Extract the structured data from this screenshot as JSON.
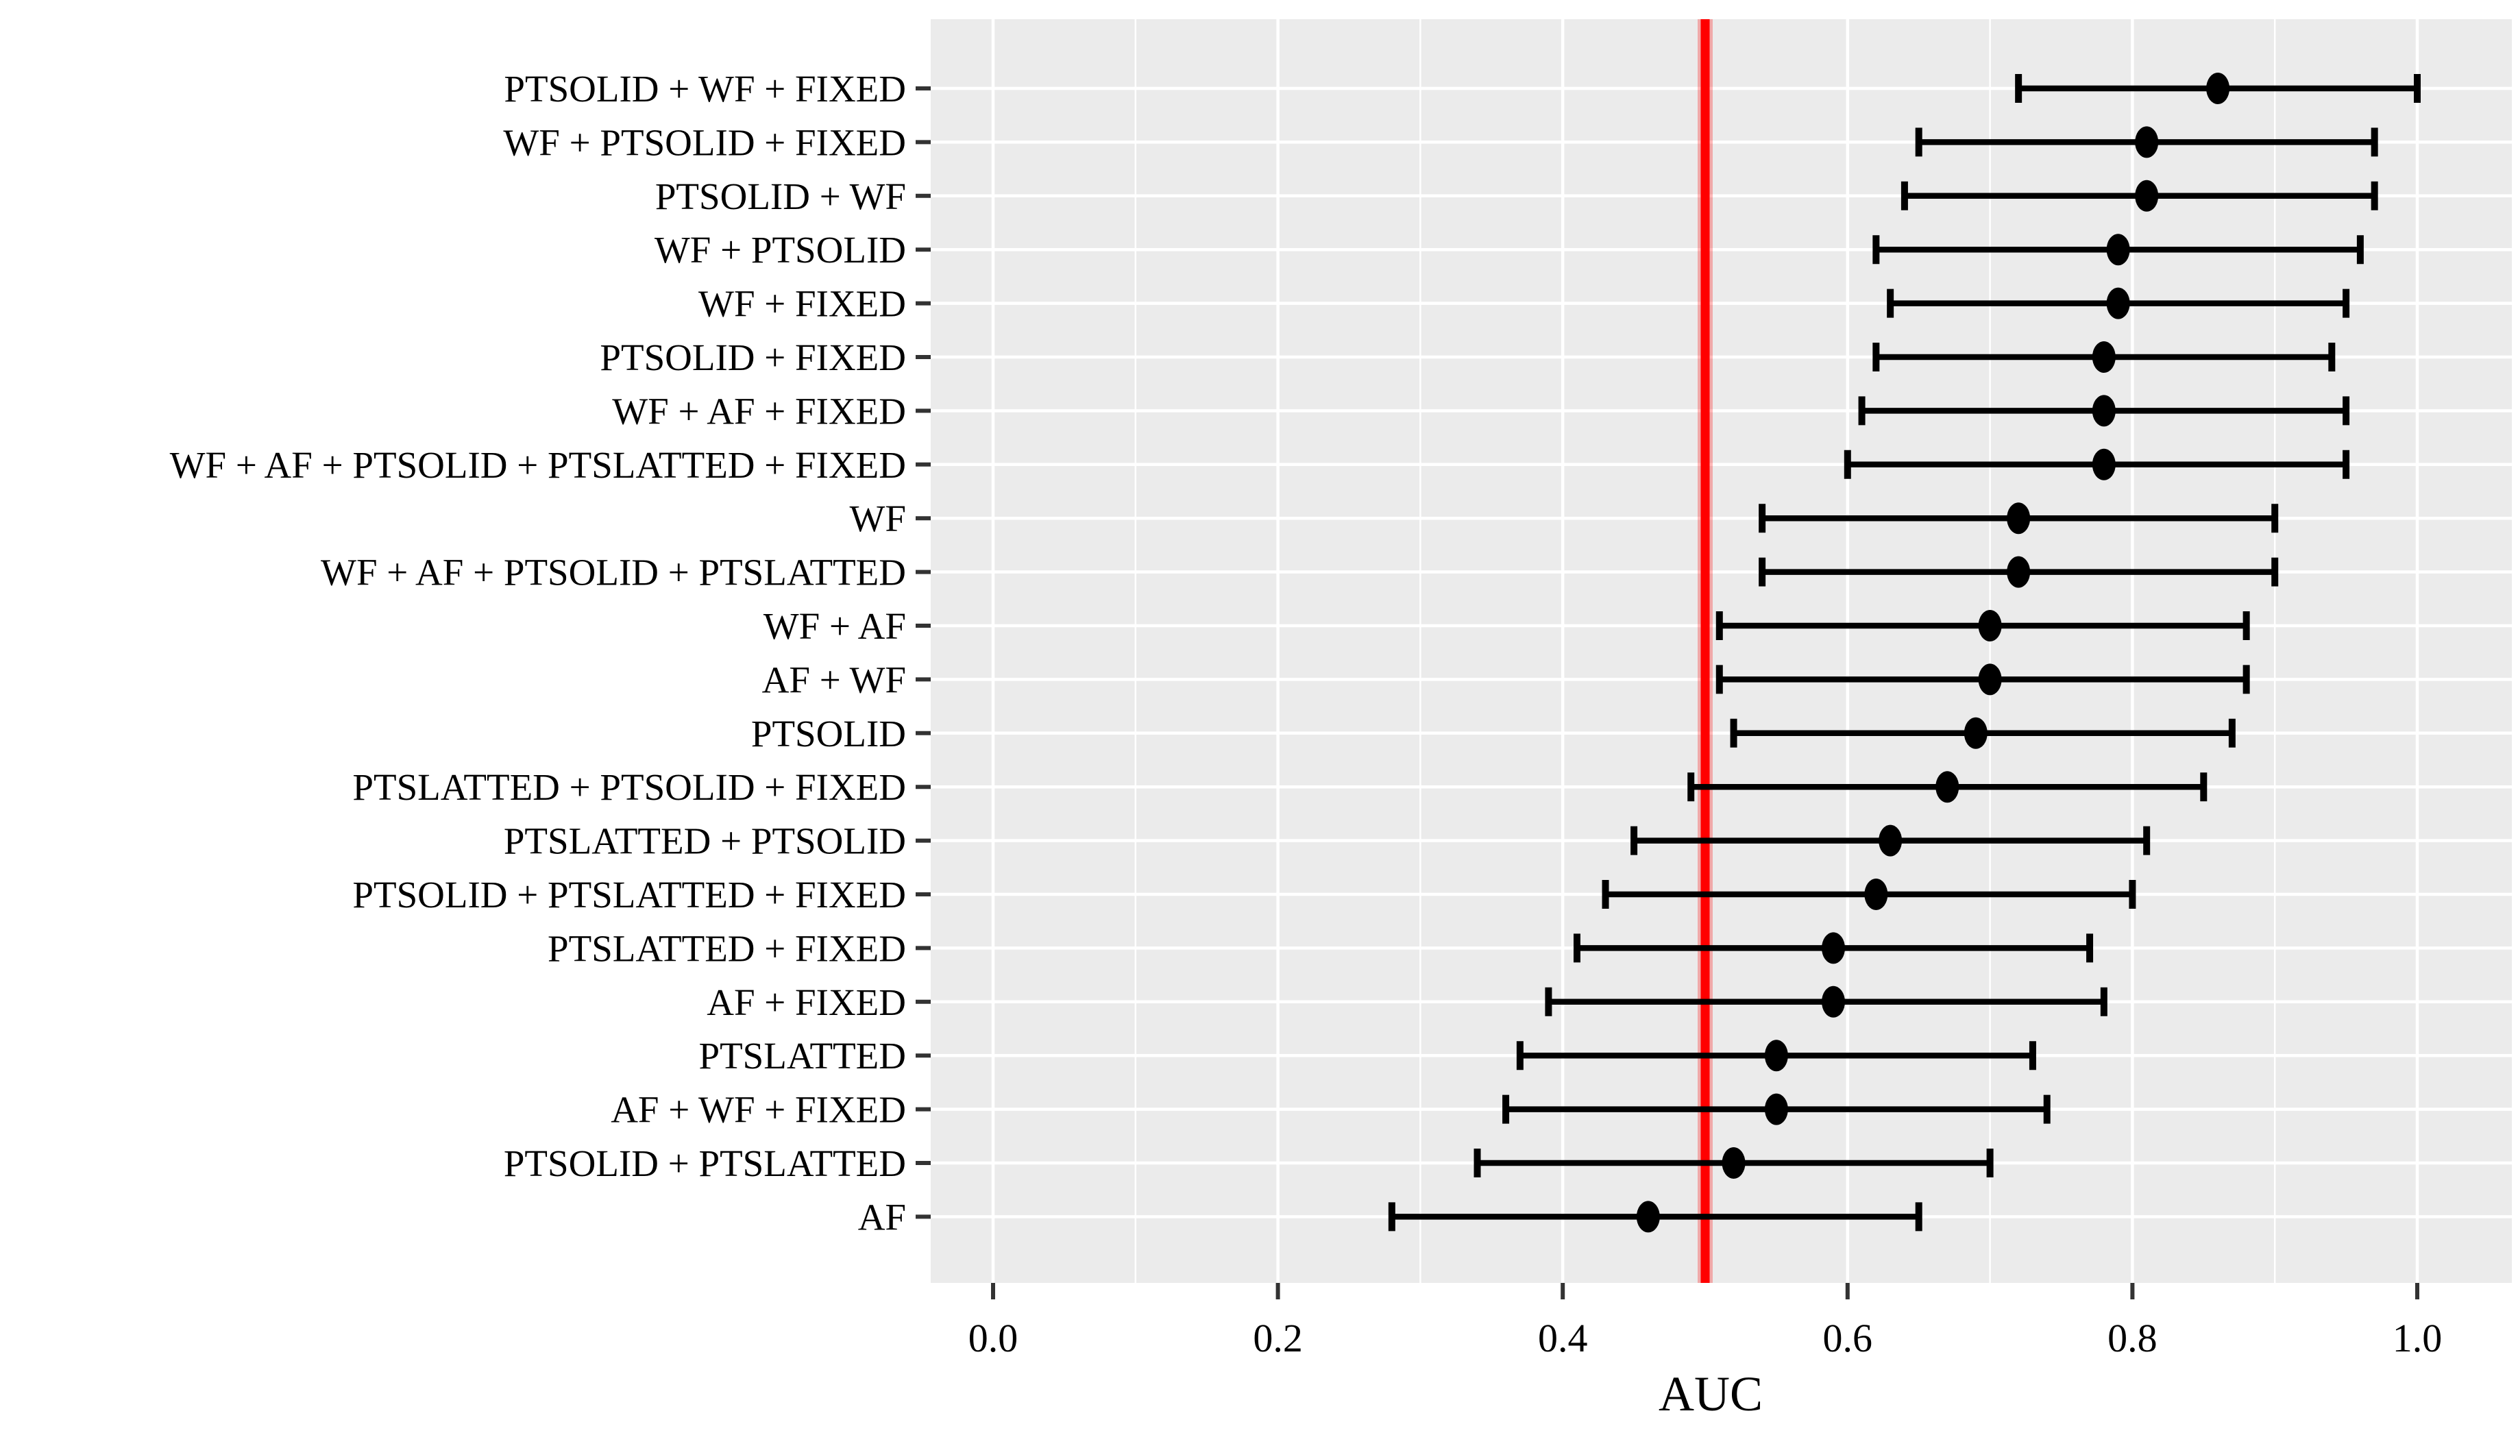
{
  "chart_data": {
    "type": "scatter",
    "subtype": "forest-dot-whisker",
    "title": "",
    "xlabel": "AUC",
    "ylabel": "",
    "xlim": [
      -0.044,
      1.066
    ],
    "x_major_ticks": [
      0.0,
      0.2,
      0.4,
      0.6,
      0.8,
      1.0
    ],
    "x_tick_labels": [
      "0.0",
      "0.2",
      "0.4",
      "0.6",
      "0.8",
      "1.0"
    ],
    "x_minor_gridlines": [
      0.1,
      0.3,
      0.5,
      0.7,
      0.9
    ],
    "grid": "on",
    "legend": "none",
    "reference_line": {
      "value": 0.5,
      "color": "#FF0000"
    },
    "colors": {
      "panel_background": "#EBEBEB",
      "gridline": "#FFFFFF",
      "point": "#000000",
      "errorbar": "#000000",
      "tick_mark": "#333333",
      "text": "#000000"
    },
    "categories": [
      "PTSOLID + WF + FIXED",
      "WF + PTSOLID + FIXED",
      "PTSOLID + WF",
      "WF + PTSOLID",
      "WF + FIXED",
      "PTSOLID + FIXED",
      "WF + AF + FIXED",
      "WF + AF + PTSOLID + PTSLATTED + FIXED",
      "WF",
      "WF + AF + PTSOLID + PTSLATTED",
      "WF + AF",
      "AF + WF",
      "PTSOLID",
      "PTSLATTED + PTSOLID + FIXED",
      "PTSLATTED + PTSOLID",
      "PTSOLID + PTSLATTED + FIXED",
      "PTSLATTED + FIXED",
      "AF + FIXED",
      "PTSLATTED",
      "AF + WF + FIXED",
      "PTSOLID + PTSLATTED",
      "AF"
    ],
    "series": [
      {
        "name": "AUC estimate with confidence interval",
        "points": [
          {
            "label": "PTSOLID + WF + FIXED",
            "estimate": 0.86,
            "ci_low": 0.72,
            "ci_high": 1.0
          },
          {
            "label": "WF + PTSOLID + FIXED",
            "estimate": 0.81,
            "ci_low": 0.65,
            "ci_high": 0.97
          },
          {
            "label": "PTSOLID + WF",
            "estimate": 0.81,
            "ci_low": 0.64,
            "ci_high": 0.97
          },
          {
            "label": "WF + PTSOLID",
            "estimate": 0.79,
            "ci_low": 0.62,
            "ci_high": 0.96
          },
          {
            "label": "WF + FIXED",
            "estimate": 0.79,
            "ci_low": 0.63,
            "ci_high": 0.95
          },
          {
            "label": "PTSOLID + FIXED",
            "estimate": 0.78,
            "ci_low": 0.62,
            "ci_high": 0.94
          },
          {
            "label": "WF + AF + FIXED",
            "estimate": 0.78,
            "ci_low": 0.61,
            "ci_high": 0.95
          },
          {
            "label": "WF + AF + PTSOLID + PTSLATTED + FIXED",
            "estimate": 0.78,
            "ci_low": 0.6,
            "ci_high": 0.95
          },
          {
            "label": "WF",
            "estimate": 0.72,
            "ci_low": 0.54,
            "ci_high": 0.9
          },
          {
            "label": "WF + AF + PTSOLID + PTSLATTED",
            "estimate": 0.72,
            "ci_low": 0.54,
            "ci_high": 0.9
          },
          {
            "label": "WF + AF",
            "estimate": 0.7,
            "ci_low": 0.51,
            "ci_high": 0.88
          },
          {
            "label": "AF + WF",
            "estimate": 0.7,
            "ci_low": 0.51,
            "ci_high": 0.88
          },
          {
            "label": "PTSOLID",
            "estimate": 0.69,
            "ci_low": 0.52,
            "ci_high": 0.87
          },
          {
            "label": "PTSLATTED + PTSOLID + FIXED",
            "estimate": 0.67,
            "ci_low": 0.49,
            "ci_high": 0.85
          },
          {
            "label": "PTSLATTED + PTSOLID",
            "estimate": 0.63,
            "ci_low": 0.45,
            "ci_high": 0.81
          },
          {
            "label": "PTSOLID + PTSLATTED + FIXED",
            "estimate": 0.62,
            "ci_low": 0.43,
            "ci_high": 0.8
          },
          {
            "label": "PTSLATTED + FIXED",
            "estimate": 0.59,
            "ci_low": 0.41,
            "ci_high": 0.77
          },
          {
            "label": "AF + FIXED",
            "estimate": 0.59,
            "ci_low": 0.39,
            "ci_high": 0.78
          },
          {
            "label": "PTSLATTED",
            "estimate": 0.55,
            "ci_low": 0.37,
            "ci_high": 0.73
          },
          {
            "label": "AF + WF + FIXED",
            "estimate": 0.55,
            "ci_low": 0.36,
            "ci_high": 0.74
          },
          {
            "label": "PTSOLID + PTSLATTED",
            "estimate": 0.52,
            "ci_low": 0.34,
            "ci_high": 0.7
          },
          {
            "label": "AF",
            "estimate": 0.46,
            "ci_low": 0.28,
            "ci_high": 0.65
          }
        ]
      }
    ]
  }
}
